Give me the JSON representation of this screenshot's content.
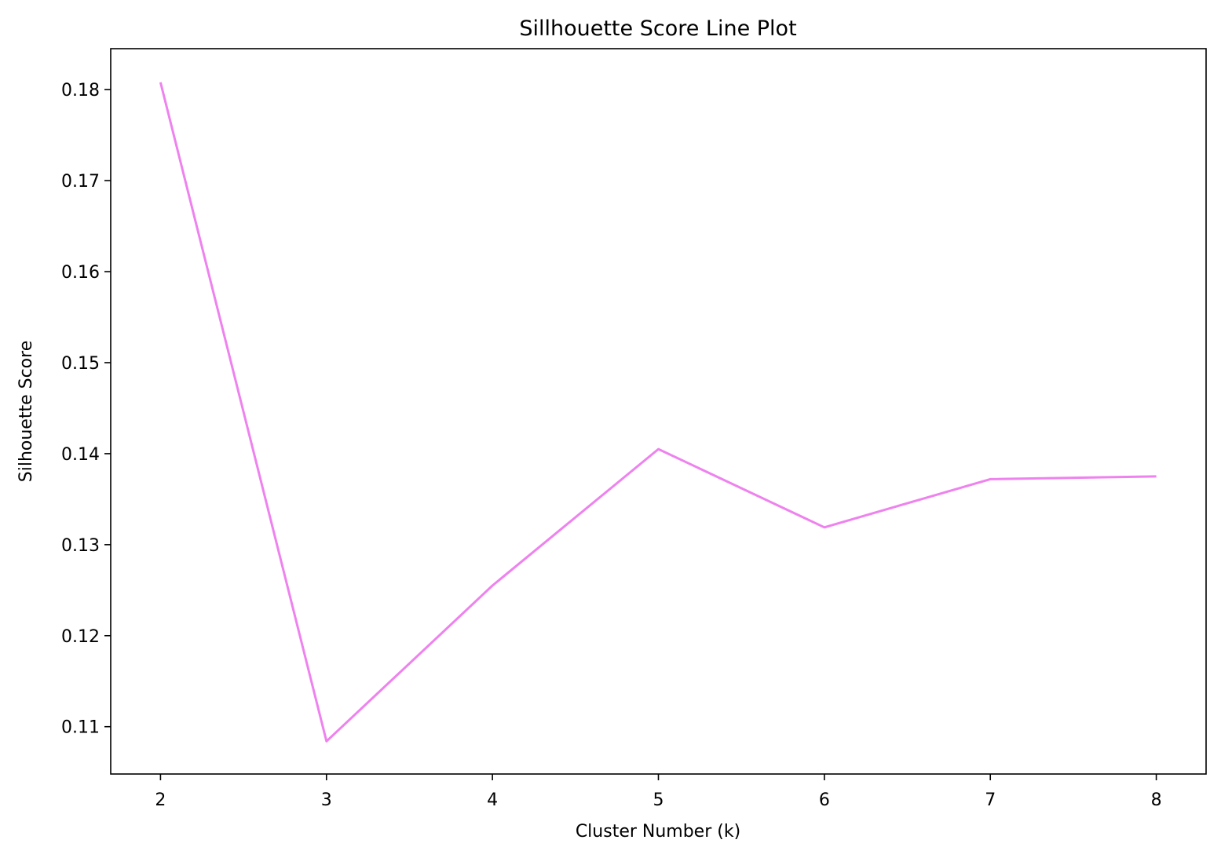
{
  "chart_data": {
    "type": "line",
    "title": "Sillhouette Score Line Plot",
    "xlabel": "Cluster Number (k)",
    "ylabel": "Silhouette Score",
    "x": [
      2,
      3,
      4,
      5,
      6,
      7,
      8
    ],
    "series": [
      {
        "values": [
          0.1808,
          0.1084,
          0.1255,
          0.1405,
          0.1319,
          0.1372,
          0.1375
        ],
        "color": "#ee82ee"
      }
    ],
    "xlim": [
      1.7,
      8.3
    ],
    "ylim": [
      0.1048,
      0.1845
    ],
    "xticks": [
      2,
      3,
      4,
      5,
      6,
      7,
      8
    ],
    "xtick_labels": [
      "2",
      "3",
      "4",
      "5",
      "6",
      "7",
      "8"
    ],
    "yticks": [
      0.11,
      0.12,
      0.13,
      0.14,
      0.15,
      0.16,
      0.17,
      0.18
    ],
    "ytick_labels": [
      "0.11",
      "0.12",
      "0.13",
      "0.14",
      "0.15",
      "0.16",
      "0.17",
      "0.18"
    ],
    "grid": false,
    "legend": false
  }
}
